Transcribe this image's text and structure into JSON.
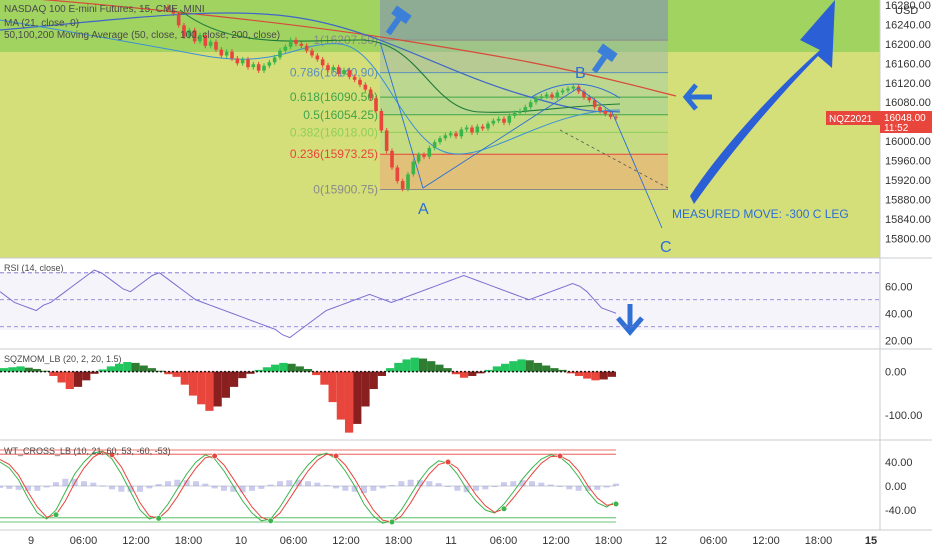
{
  "header": {
    "symbol_line": "NASDAQ 100 E-mini Futures, 15, CME_MINI",
    "ma_line": "MA (21, close, 0)",
    "ma_multi_line": "50,100,200 Moving Average (50, close, 100, close, 200, close)"
  },
  "price_panel": {
    "currency": "USD",
    "ylim": [
      15760,
      16290
    ],
    "price_ticks": [
      "16280.00",
      "16240.00",
      "16200.00",
      "16160.00",
      "16120.00",
      "16080.00",
      "16040.00",
      "16000.00",
      "15960.00",
      "15920.00",
      "15880.00",
      "15840.00",
      "15800.00"
    ],
    "price_tick_values": [
      16280,
      16240,
      16200,
      16160,
      16120,
      16080,
      16040,
      16000,
      15960,
      15920,
      15880,
      15840,
      15800
    ],
    "last_price_label": "16048.00",
    "ticker_tag": "NQZ2021",
    "countdown": "11:52",
    "last_price": 16048,
    "colors": {
      "up": "#3bb54a",
      "down": "#e8453c",
      "ticker_tag": "#e8453c",
      "green_zone": "#8fcf5a",
      "yellow_zone": "#d5df7a",
      "arrow": "#2b6fd6"
    }
  },
  "fibonacci": {
    "levels": [
      {
        "label": "1(16207.50)",
        "ratio": 1,
        "price": 16207.5,
        "color": "#8a8a8a"
      },
      {
        "label": "0.786(16140.90)",
        "ratio": 0.786,
        "price": 16140.9,
        "color": "#5b8fb9"
      },
      {
        "label": "0.618(16090.50)",
        "ratio": 0.618,
        "price": 16090.5,
        "color": "#3fa44a"
      },
      {
        "label": "0.5(16054.25)",
        "ratio": 0.5,
        "price": 16054.25,
        "color": "#3fa44a"
      },
      {
        "label": "0.382(16018.00)",
        "ratio": 0.382,
        "price": 16018,
        "color": "#8fcf5a"
      },
      {
        "label": "0.236(15973.25)",
        "ratio": 0.236,
        "price": 15973.25,
        "color": "#e8453c"
      },
      {
        "label": "0(15900.75)",
        "ratio": 0,
        "price": 15900.75,
        "color": "#8a8a8a"
      }
    ]
  },
  "annotations": {
    "point_a": "A",
    "point_b": "B",
    "point_c": "C",
    "measured_move": "MEASURED MOVE: -300 C LEG",
    "icons": [
      "hammer-icon",
      "hammer-icon",
      "arrow-left-icon",
      "arrow-down-icon",
      "arrow-up-right-icon"
    ]
  },
  "rsi_panel": {
    "title": "RSI (14, close)",
    "ticks": [
      "60.00",
      "40.00",
      "20.00"
    ],
    "tick_values": [
      60,
      40,
      20
    ],
    "ylim": [
      15,
      78
    ],
    "band": [
      30,
      70
    ],
    "color": "#7b6fd0"
  },
  "sqz_panel": {
    "title": "SQZMOM_LB (20, 2, 20, 1.5)",
    "ticks": [
      "0.00",
      "-100.00"
    ],
    "tick_values": [
      0,
      -100
    ],
    "ylim": [
      -150,
      45
    ]
  },
  "wt_panel": {
    "title": "WT_CROSS_LB (10, 21, 60, 53, -60, -53)",
    "ticks": [
      "40.00",
      "0.00",
      "-40.00"
    ],
    "tick_values": [
      40,
      0,
      -40
    ],
    "ylim": [
      -70,
      70
    ],
    "levels": [
      60,
      53,
      -53,
      -60
    ]
  },
  "time_axis": {
    "labels": [
      "9",
      "06:00",
      "12:00",
      "18:00",
      "10",
      "06:00",
      "12:00",
      "18:00",
      "11",
      "06:00",
      "12:00",
      "18:00",
      "12",
      "06:00",
      "12:00",
      "18:00",
      "15"
    ]
  },
  "chart_data": {
    "type": "candlestick",
    "x_unit": "15-minute bars",
    "closes": [
      16270,
      16262,
      16238,
      16215,
      16228,
      16205,
      16218,
      16196,
      16204,
      16188,
      16176,
      16184,
      16170,
      16160,
      16168,
      16152,
      16158,
      16145,
      16155,
      16162,
      16172,
      16186,
      16194,
      16208,
      16200,
      16196,
      16186,
      16176,
      16168,
      16156,
      16146,
      16152,
      16138,
      16146,
      16132,
      16126,
      16116,
      16106,
      16088,
      16062,
      16022,
      15980,
      15946,
      15918,
      15902,
      15932,
      15958,
      15972,
      15968,
      15986,
      15998,
      16006,
      16012,
      16016,
      16010,
      16024,
      16028,
      16018,
      16030,
      16026,
      16036,
      16042,
      16046,
      16038,
      16052,
      16058,
      16062,
      16070,
      16080,
      16088,
      16092,
      16096,
      16090,
      16100,
      16104,
      16108,
      16112,
      16102,
      16090,
      16084,
      16070,
      16062,
      16056,
      16050,
      16048
    ],
    "rsi": [
      56,
      52,
      48,
      46,
      44,
      42,
      46,
      48,
      52,
      56,
      60,
      64,
      68,
      72,
      70,
      66,
      62,
      58,
      56,
      60,
      64,
      68,
      70,
      66,
      62,
      58,
      54,
      50,
      48,
      46,
      44,
      42,
      40,
      38,
      36,
      34,
      32,
      30,
      28,
      24,
      22,
      26,
      30,
      34,
      38,
      42,
      44,
      46,
      48,
      50,
      52,
      54,
      52,
      50,
      48,
      50,
      52,
      54,
      56,
      58,
      60,
      62,
      64,
      66,
      68,
      66,
      64,
      62,
      60,
      58,
      56,
      54,
      52,
      50,
      52,
      54,
      56,
      58,
      60,
      62,
      60,
      56,
      50,
      44,
      42,
      40
    ],
    "sqzmom": [
      8,
      10,
      12,
      9,
      6,
      2,
      -10,
      -25,
      -40,
      -35,
      -20,
      -5,
      5,
      12,
      18,
      22,
      20,
      14,
      8,
      2,
      -6,
      -12,
      -30,
      -55,
      -75,
      -90,
      -80,
      -60,
      -35,
      -15,
      -5,
      4,
      10,
      16,
      20,
      18,
      12,
      6,
      -8,
      -30,
      -70,
      -110,
      -140,
      -120,
      -80,
      -40,
      -10,
      8,
      20,
      28,
      32,
      30,
      24,
      16,
      8,
      -6,
      -14,
      -10,
      -4,
      4,
      12,
      18,
      24,
      28,
      26,
      20,
      14,
      8,
      4,
      -4,
      -10,
      -16,
      -20,
      -18,
      -12
    ],
    "wt1": [
      40,
      30,
      10,
      -20,
      -45,
      -55,
      -40,
      -10,
      20,
      40,
      55,
      58,
      45,
      20,
      -10,
      -40,
      -55,
      -50,
      -30,
      -5,
      20,
      40,
      52,
      45,
      25,
      0,
      -25,
      -45,
      -58,
      -55,
      -35,
      -10,
      15,
      35,
      50,
      55,
      45,
      25,
      0,
      -30,
      -50,
      -62,
      -58,
      -40,
      -15,
      10,
      30,
      42,
      38,
      20,
      -5,
      -25,
      -40,
      -45,
      -30,
      -10,
      12,
      30,
      45,
      52,
      48,
      35,
      15,
      -10,
      -28,
      -35,
      -25
    ],
    "wt2": [
      44,
      36,
      18,
      -10,
      -35,
      -52,
      -48,
      -25,
      5,
      30,
      48,
      57,
      52,
      32,
      2,
      -28,
      -50,
      -54,
      -40,
      -18,
      8,
      30,
      47,
      50,
      35,
      12,
      -12,
      -35,
      -52,
      -58,
      -45,
      -22,
      2,
      25,
      43,
      53,
      50,
      35,
      12,
      -15,
      -40,
      -57,
      -60,
      -50,
      -28,
      -2,
      20,
      36,
      40,
      30,
      8,
      -15,
      -33,
      -44,
      -38,
      -20,
      0,
      20,
      38,
      49,
      50,
      42,
      25,
      0,
      -20,
      -32,
      -30
    ],
    "points": [
      {
        "label": "A",
        "price": 15900.75
      },
      {
        "label": "B",
        "price": 16112
      }
    ]
  }
}
